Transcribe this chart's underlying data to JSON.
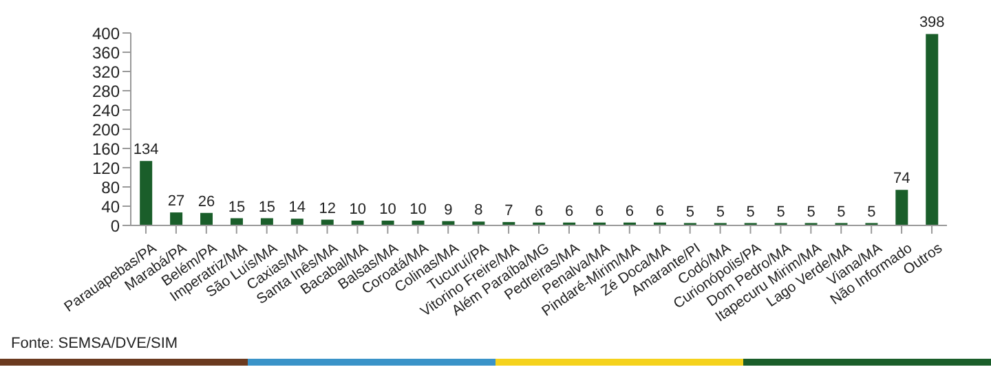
{
  "chart_data": {
    "type": "bar",
    "categories": [
      "Parauapebas/PA",
      "Marabá/PA",
      "Belém/PA",
      "Imperatriz/MA",
      "São Luís/MA",
      "Caxias/MA",
      "Santa Inês/MA",
      "Bacabal/MA",
      "Balsas/MA",
      "Coroatá/MA",
      "Colinas/MA",
      "Tucuruí/PA",
      "Vitorino Freire/MA",
      "Além Paraíba/MG",
      "Pedreiras/MA",
      "Penalva/MA",
      "Pindaré-Mirim/MA",
      "Zé Doca/MA",
      "Amarante/PI",
      "Codó/MA",
      "Curionópolis/PA",
      "Dom Pedro/MA",
      "Itapecuru Mirim/MA",
      "Lago Verde/MA",
      "Viana/MA",
      "Não Informado",
      "Outros"
    ],
    "values": [
      134,
      27,
      26,
      15,
      15,
      14,
      12,
      10,
      10,
      10,
      9,
      8,
      7,
      6,
      6,
      6,
      6,
      6,
      5,
      5,
      5,
      5,
      5,
      5,
      5,
      74,
      398
    ],
    "color": "#1a5e2a",
    "ylim": [
      0,
      400
    ],
    "yticks": [
      0,
      40,
      80,
      120,
      160,
      200,
      240,
      280,
      320,
      360,
      400
    ],
    "data_labels": true,
    "annotations": [
      "Fonte: SEMSA/DVE/SIM"
    ]
  }
}
